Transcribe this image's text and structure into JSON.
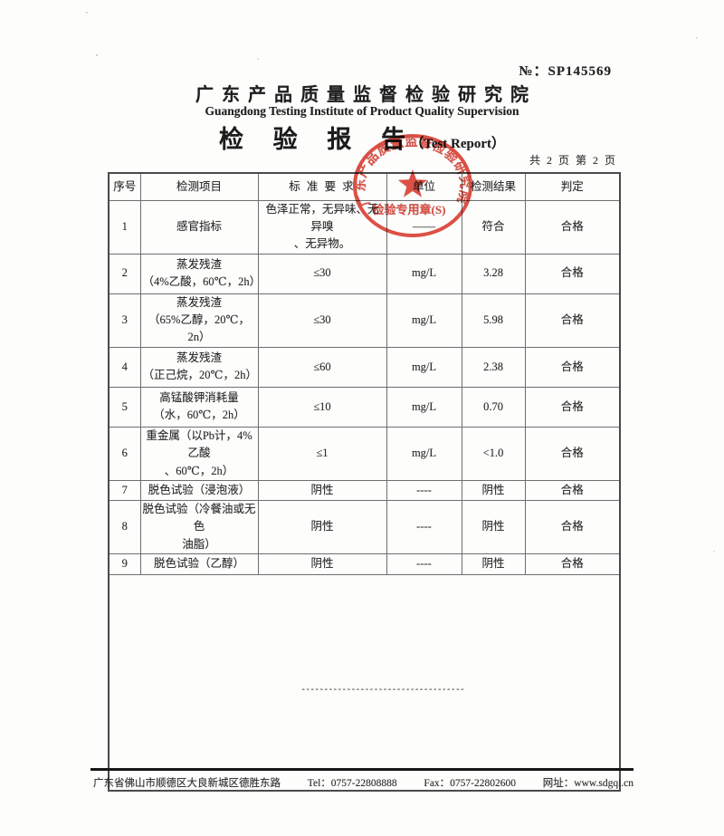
{
  "report": {
    "no_label": "№：",
    "no": "SP145569",
    "institute_cn": "广东产品质量监督检验研究院",
    "institute_en": "Guangdong Testing Institute of Product Quality Supervision",
    "title_cn": "检 验 报 告",
    "title_en_paren": "（Test Report）",
    "page_indicator": "共 2 页 第 2 页"
  },
  "stamp": {
    "arc_text": "广东产品质量监督检验研究院",
    "bottom_text": "检验专用章(S)",
    "color": "#d93226"
  },
  "table": {
    "headers": [
      "序号",
      "检测项目",
      "标 准 要 求",
      "单位",
      "检测结果",
      "判定"
    ],
    "rows": [
      {
        "no": "1",
        "item_lines": [
          "感官指标"
        ],
        "standard_lines": [
          "色泽正常，无异味、无异嗅",
          "、无异物。"
        ],
        "unit": "——",
        "result": "符合",
        "verdict": "合格"
      },
      {
        "no": "2",
        "item_lines": [
          "蒸发残渣",
          "（4%乙酸，60℃，2h）"
        ],
        "standard_lines": [
          "≤30"
        ],
        "unit": "mg/L",
        "result": "3.28",
        "verdict": "合格"
      },
      {
        "no": "3",
        "item_lines": [
          "蒸发残渣",
          "（65%乙醇，20℃，2n）"
        ],
        "standard_lines": [
          "≤30"
        ],
        "unit": "mg/L",
        "result": "5.98",
        "verdict": "合格"
      },
      {
        "no": "4",
        "item_lines": [
          "蒸发残渣",
          "（正己烷，20℃，2h）"
        ],
        "standard_lines": [
          "≤60"
        ],
        "unit": "mg/L",
        "result": "2.38",
        "verdict": "合格"
      },
      {
        "no": "5",
        "item_lines": [
          "高锰酸钾消耗量",
          "（水，60℃，2h）"
        ],
        "standard_lines": [
          "≤10"
        ],
        "unit": "mg/L",
        "result": "0.70",
        "verdict": "合格"
      },
      {
        "no": "6",
        "item_lines": [
          "重金属（以Pb计，4%乙酸",
          "、60℃，2h）"
        ],
        "standard_lines": [
          "≤1"
        ],
        "unit": "mg/L",
        "result": "<1.0",
        "verdict": "合格"
      },
      {
        "no": "7",
        "item_lines": [
          "脱色试验（浸泡液）"
        ],
        "standard_lines": [
          "阴性"
        ],
        "unit": "----",
        "result": "阴性",
        "verdict": "合格"
      },
      {
        "no": "8",
        "item_lines": [
          "脱色试验（冷餐油或无色",
          "油脂）"
        ],
        "standard_lines": [
          "阴性"
        ],
        "unit": "----",
        "result": "阴性",
        "verdict": "合格"
      },
      {
        "no": "9",
        "item_lines": [
          "脱色试验（乙醇）"
        ],
        "standard_lines": [
          "阴性"
        ],
        "unit": "----",
        "result": "阴性",
        "verdict": "合格"
      }
    ],
    "empty_note": "------------------------------------"
  },
  "footer": {
    "items": [
      "广东省佛山市顺德区大良新城区德胜东路",
      "Tel：0757-22808888",
      "Fax：0757-22802600",
      "网址：www.sdgqi.cn"
    ]
  }
}
